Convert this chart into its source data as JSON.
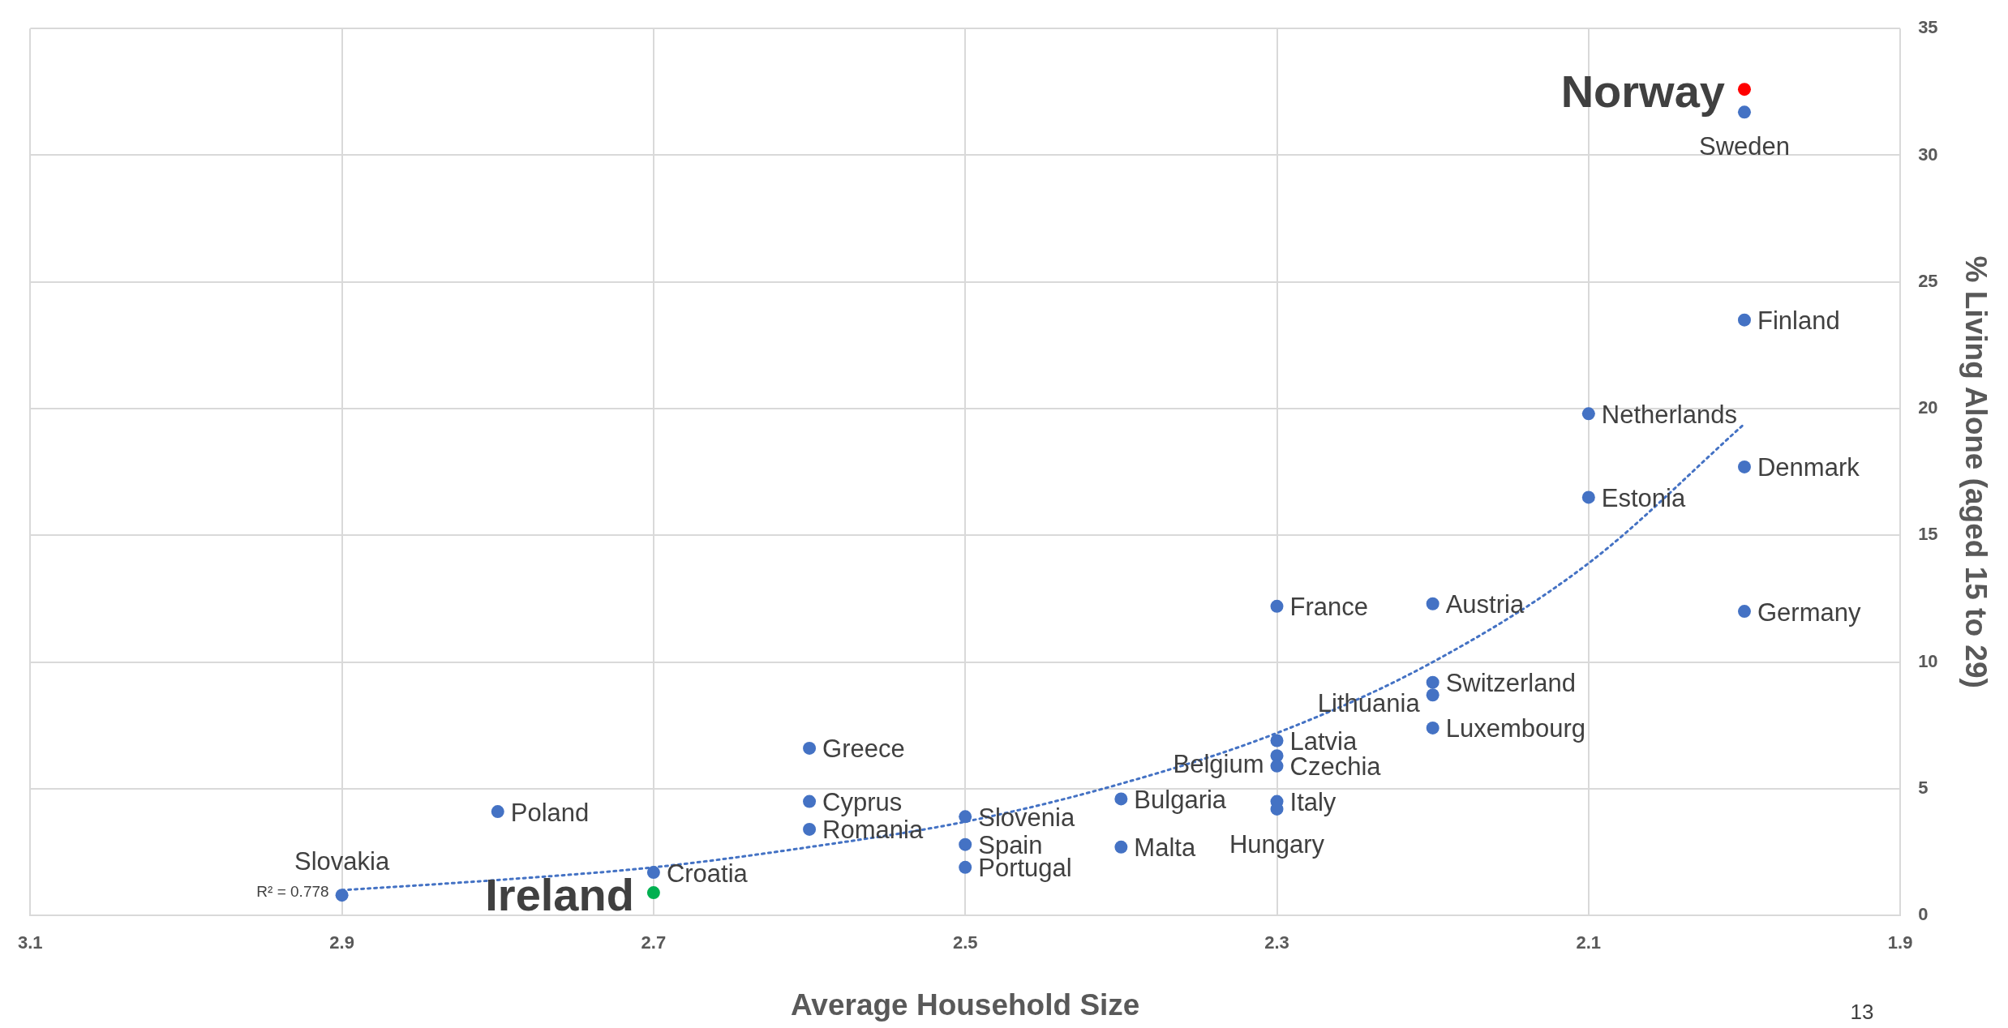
{
  "chart_data": {
    "type": "scatter",
    "xlabel": "Average Household Size",
    "ylabel": "% Living Alone (aged 15 to 29)",
    "xlim": [
      3.1,
      1.9
    ],
    "xticks": [
      3.1,
      2.9,
      2.7,
      2.5,
      2.3,
      2.1,
      1.9
    ],
    "ylim": [
      0,
      35
    ],
    "yticks": [
      0,
      5,
      10,
      15,
      20,
      25,
      30,
      35
    ],
    "grid": true,
    "legend": false,
    "marker": "circle",
    "series": [
      {
        "x": [
          2.0,
          2.0,
          2.0,
          2.1,
          2.0,
          2.1,
          2.0,
          2.3,
          2.2,
          2.2,
          2.2,
          2.2,
          2.3,
          2.3,
          2.3,
          2.3,
          2.3,
          2.6,
          2.6,
          2.6,
          2.8,
          2.5,
          2.5,
          2.5,
          2.4,
          2.4,
          2.7,
          2.7,
          2.9
        ],
        "values": [
          32.6,
          31.7,
          23.5,
          19.8,
          17.7,
          16.5,
          12.0,
          12.2,
          12.3,
          9.2,
          8.7,
          7.4,
          6.9,
          6.3,
          5.9,
          4.5,
          4.2,
          6.6,
          4.5,
          3.4,
          4.1,
          3.9,
          2.8,
          1.9,
          4.6,
          2.7,
          1.7,
          0.9,
          0.8
        ],
        "colors": [
          "#ff0000",
          "#4472c4",
          "#4472c4",
          "#4472c4",
          "#4472c4",
          "#4472c4",
          "#4472c4",
          "#4472c4",
          "#4472c4",
          "#4472c4",
          "#4472c4",
          "#4472c4",
          "#4472c4",
          "#4472c4",
          "#4472c4",
          "#4472c4",
          "#4472c4",
          "#4472c4",
          "#4472c4",
          "#4472c4",
          "#4472c4",
          "#4472c4",
          "#4472c4",
          "#4472c4",
          "#4472c4",
          "#4472c4",
          "#4472c4",
          "#00b050",
          "#4472c4"
        ]
      },
      {
        "type": "line",
        "color": "#4472c4",
        "line_style": "dotted",
        "marker": "none",
        "x": [
          2.9,
          2.8,
          2.7,
          2.6,
          2.5,
          2.4,
          2.3,
          2.2,
          2.1,
          2.0
        ],
        "values": [
          1.0,
          1.4,
          1.9,
          2.7,
          3.7,
          5.2,
          7.2,
          10.0,
          13.9,
          19.4
        ]
      }
    ],
    "annotations": [
      {
        "text": "Norway",
        "x": 2.0,
        "y": 32.6
      },
      {
        "text": "Sweden",
        "x": 2.0,
        "y": 31.7
      },
      {
        "text": "Finland",
        "x": 2.0,
        "y": 23.5
      },
      {
        "text": "Netherlands",
        "x": 2.1,
        "y": 19.8
      },
      {
        "text": "Denmark",
        "x": 2.0,
        "y": 17.7
      },
      {
        "text": "Estonia",
        "x": 2.1,
        "y": 16.5
      },
      {
        "text": "Germany",
        "x": 2.0,
        "y": 12.0
      },
      {
        "text": "France",
        "x": 2.3,
        "y": 12.2
      },
      {
        "text": "Austria",
        "x": 2.2,
        "y": 12.3
      },
      {
        "text": "Switzerland",
        "x": 2.2,
        "y": 9.2
      },
      {
        "text": "Lithuania",
        "x": 2.2,
        "y": 8.7
      },
      {
        "text": "Luxembourg",
        "x": 2.2,
        "y": 7.4
      },
      {
        "text": "Latvia",
        "x": 2.3,
        "y": 6.9
      },
      {
        "text": "Belgium",
        "x": 2.3,
        "y": 6.3
      },
      {
        "text": "Czechia",
        "x": 2.3,
        "y": 5.9
      },
      {
        "text": "Italy",
        "x": 2.3,
        "y": 4.5
      },
      {
        "text": "Hungary",
        "x": 2.3,
        "y": 4.2
      },
      {
        "text": "Greece",
        "x": 2.6,
        "y": 6.6
      },
      {
        "text": "Cyprus",
        "x": 2.6,
        "y": 4.5
      },
      {
        "text": "Romania",
        "x": 2.6,
        "y": 3.4
      },
      {
        "text": "Poland",
        "x": 2.8,
        "y": 4.1
      },
      {
        "text": "Slovenia",
        "x": 2.5,
        "y": 3.9
      },
      {
        "text": "Spain",
        "x": 2.5,
        "y": 2.8
      },
      {
        "text": "Portugal",
        "x": 2.5,
        "y": 1.9
      },
      {
        "text": "Bulgaria",
        "x": 2.4,
        "y": 4.6
      },
      {
        "text": "Malta",
        "x": 2.4,
        "y": 2.7
      },
      {
        "text": "Croatia",
        "x": 2.7,
        "y": 1.7
      },
      {
        "text": "Ireland",
        "x": 2.7,
        "y": 0.9
      },
      {
        "text": "Slovakia",
        "x": 2.9,
        "y": 0.8
      },
      {
        "text": "R² = 0.778",
        "x": 2.9,
        "y": 0.8
      },
      "13"
    ]
  }
}
